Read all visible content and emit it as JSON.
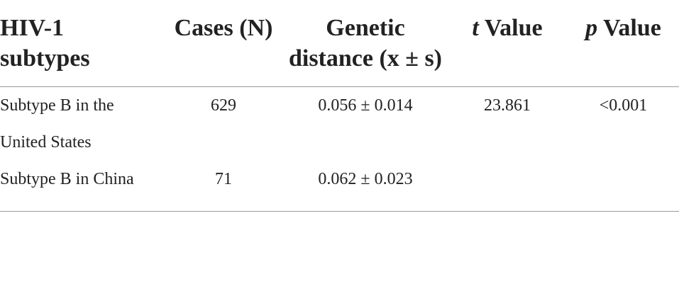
{
  "table": {
    "header": [
      "HIV-1 subtypes",
      "Cases (N)",
      "Genetic distance (x ± s)",
      {
        "italic": "t",
        "text": "Value"
      },
      {
        "italic": "p",
        "text": "Value"
      }
    ],
    "rows": [
      [
        "Subtype B in the United States",
        "629",
        "0.056 ± 0.014",
        "23.861",
        "<0.001"
      ],
      [
        "Subtype B in China",
        "71",
        "0.062 ± 0.023",
        "",
        ""
      ]
    ]
  }
}
